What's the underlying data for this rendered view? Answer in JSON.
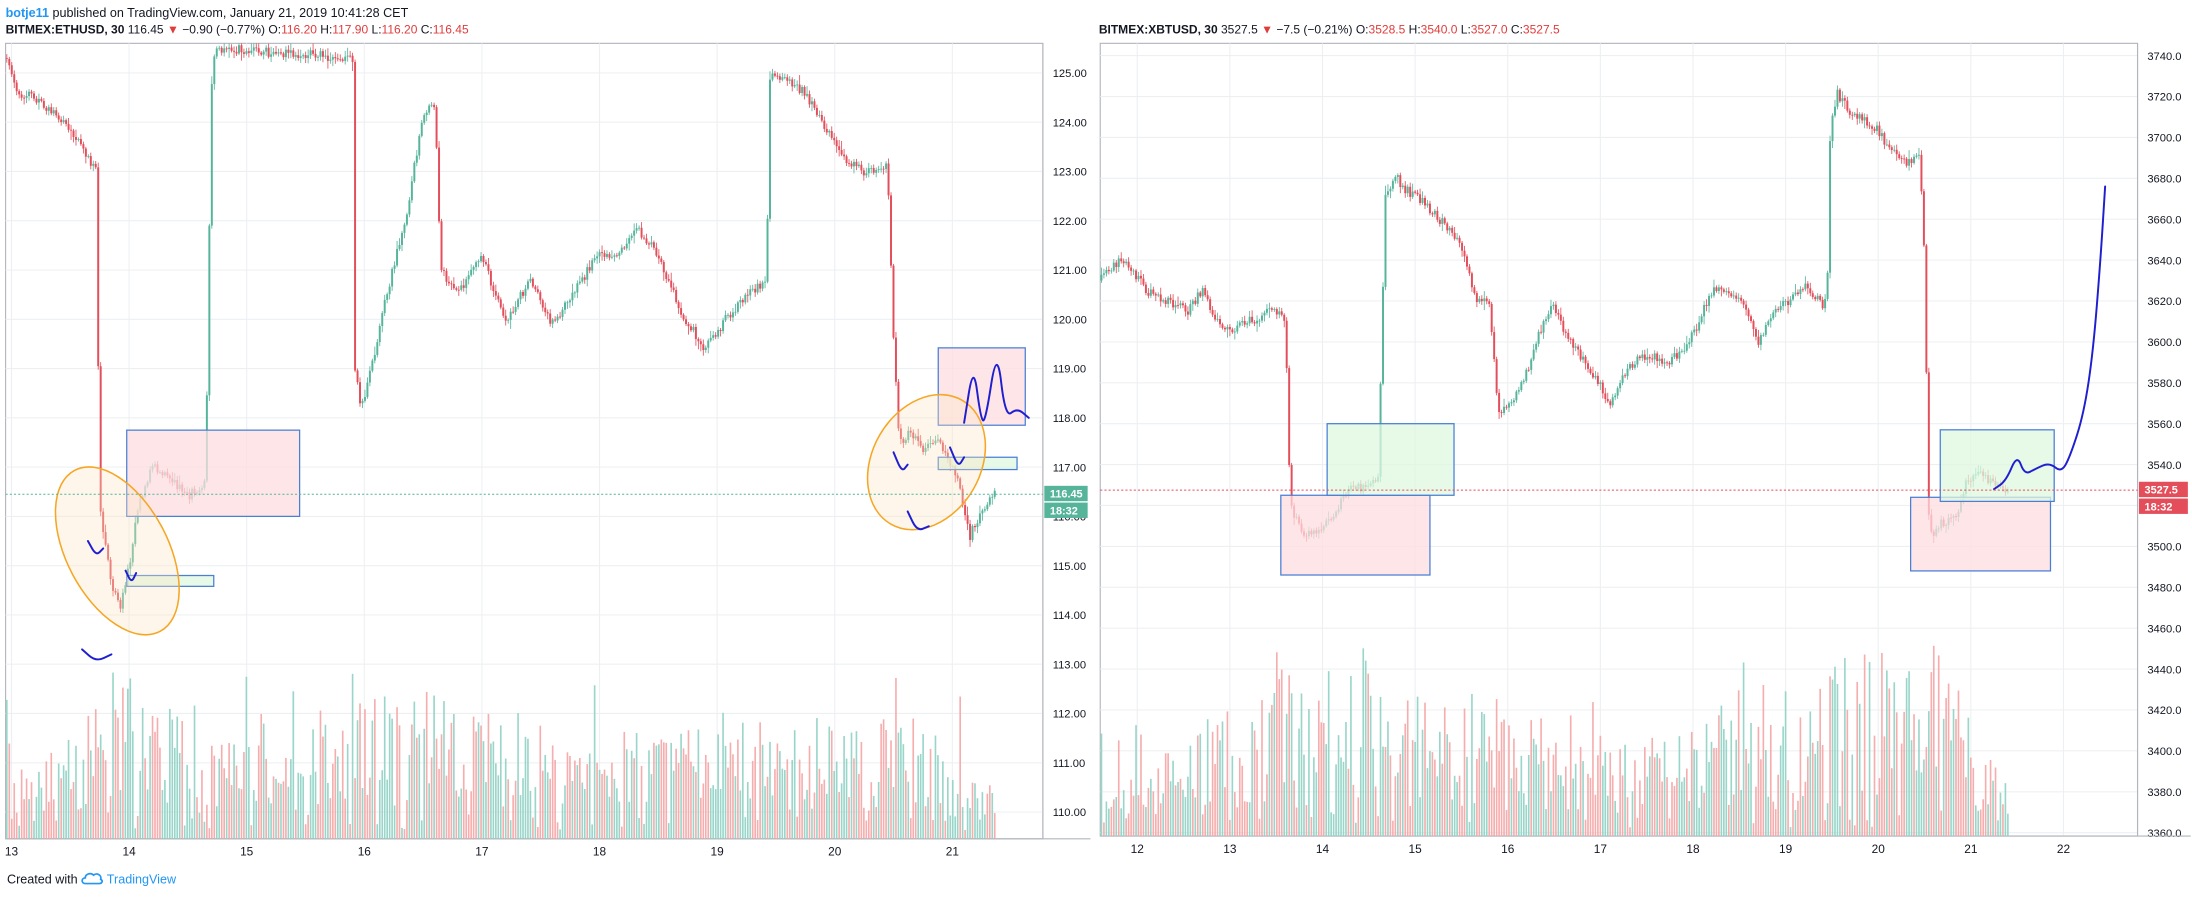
{
  "header": {
    "author": "botje11",
    "published": "published on TradingView.com, January 21, 2019 10:41:28 CET"
  },
  "footer": {
    "created_with": "Created with",
    "brand": "TradingView"
  },
  "colors": {
    "up": "#56b49b",
    "down": "#e34e5a",
    "vol_up": "#8ed0c3",
    "vol_down": "#f4a4a4",
    "grid": "#edf0f3",
    "axis": "#9aa0a6",
    "box_red_fill": "#fddde0",
    "box_green_fill": "#dff7df",
    "box_stroke": "#4a7fd6",
    "ellipse": "#f5a623",
    "marker": "#1f1fd0"
  },
  "panels": [
    {
      "id": "eth",
      "title": {
        "symbol": "BITMEX:ETHUSD, 30",
        "last": "116.45",
        "change": "−0.90 (−0.77%)",
        "o_label": "O:",
        "o": "116.20",
        "h_label": "H:",
        "h": "117.90",
        "l_label": "L:",
        "l": "116.20",
        "c_label": "C:",
        "c": "116.45"
      },
      "price_badge": {
        "value": "116.45",
        "countdown": "18:32",
        "color": "#56b49b"
      }
    },
    {
      "id": "xbt",
      "title": {
        "symbol": "BITMEX:XBTUSD, 30",
        "last": "3527.5",
        "change": "−7.5 (−0.21%)",
        "o_label": "O:",
        "o": "3528.5",
        "h_label": "H:",
        "h": "3540.0",
        "l_label": "L:",
        "l": "3527.0",
        "c_label": "C:",
        "c": "3527.5"
      },
      "price_badge": {
        "value": "3527.5",
        "countdown": "18:32",
        "color": "#e34e5a"
      }
    }
  ],
  "chart_data": [
    {
      "type": "candlestick",
      "symbol": "BITMEX:ETHUSD",
      "interval": "30",
      "ylim": [
        109.4,
        125.6
      ],
      "y_ticks": [
        "110.00",
        "111.00",
        "112.00",
        "113.00",
        "114.00",
        "115.00",
        "116.00",
        "117.00",
        "118.00",
        "119.00",
        "120.00",
        "121.00",
        "122.00",
        "123.00",
        "124.00",
        "125.00"
      ],
      "x_ticks": [
        "13",
        "14",
        "15",
        "16",
        "17",
        "18",
        "19",
        "20",
        "21"
      ],
      "x_range_days": [
        12.95,
        21.77
      ],
      "last_price": 116.45,
      "grid": true,
      "price_path": [
        [
          12.95,
          125.3
        ],
        [
          13.05,
          124.6
        ],
        [
          13.2,
          124.5
        ],
        [
          13.35,
          124.2
        ],
        [
          13.5,
          123.8
        ],
        [
          13.65,
          123.3
        ],
        [
          13.72,
          123.0
        ],
        [
          13.74,
          118.5
        ],
        [
          13.76,
          116.0
        ],
        [
          13.85,
          114.7
        ],
        [
          13.92,
          114.1
        ],
        [
          14.0,
          115.0
        ],
        [
          14.08,
          116.2
        ],
        [
          14.2,
          117.0
        ],
        [
          14.35,
          116.8
        ],
        [
          14.5,
          116.4
        ],
        [
          14.65,
          116.7
        ],
        [
          14.7,
          124.6
        ],
        [
          14.72,
          125.3
        ],
        [
          14.75,
          125.5
        ],
        [
          15.9,
          125.3
        ],
        [
          15.92,
          119.0
        ],
        [
          15.97,
          118.2
        ],
        [
          16.05,
          118.9
        ],
        [
          16.2,
          120.6
        ],
        [
          16.35,
          122.0
        ],
        [
          16.5,
          124.2
        ],
        [
          16.6,
          124.4
        ],
        [
          16.65,
          121.0
        ],
        [
          16.8,
          120.5
        ],
        [
          17.0,
          121.3
        ],
        [
          17.2,
          119.9
        ],
        [
          17.4,
          120.8
        ],
        [
          17.6,
          119.9
        ],
        [
          17.8,
          120.6
        ],
        [
          18.0,
          121.4
        ],
        [
          18.15,
          121.2
        ],
        [
          18.3,
          121.9
        ],
        [
          18.5,
          121.3
        ],
        [
          18.7,
          120.1
        ],
        [
          18.9,
          119.4
        ],
        [
          19.1,
          120.1
        ],
        [
          19.3,
          120.6
        ],
        [
          19.42,
          120.8
        ],
        [
          19.45,
          125.0
        ],
        [
          19.6,
          124.8
        ],
        [
          19.75,
          124.6
        ],
        [
          19.9,
          124.0
        ],
        [
          20.05,
          123.3
        ],
        [
          20.25,
          123.0
        ],
        [
          20.45,
          123.1
        ],
        [
          20.5,
          119.6
        ],
        [
          20.55,
          117.5
        ],
        [
          20.65,
          117.7
        ],
        [
          20.75,
          117.4
        ],
        [
          20.85,
          117.6
        ],
        [
          20.95,
          117.3
        ],
        [
          21.05,
          116.7
        ],
        [
          21.15,
          115.6
        ],
        [
          21.25,
          116.1
        ],
        [
          21.35,
          116.45
        ]
      ],
      "volume_path": [
        [
          12.95,
          0.1
        ],
        [
          13.74,
          0.95
        ],
        [
          14.7,
          0.55
        ],
        [
          15.92,
          0.9
        ],
        [
          17.5,
          0.5
        ],
        [
          19.45,
          0.6
        ],
        [
          20.5,
          0.7
        ],
        [
          21.2,
          0.3
        ]
      ],
      "annotations": {
        "boxes": [
          {
            "x1": 13.98,
            "x2": 15.45,
            "y1": 117.75,
            "y2": 116.0,
            "fill": "red"
          },
          {
            "x1": 13.98,
            "x2": 14.72,
            "y1": 114.8,
            "y2": 114.58,
            "fill": "green"
          },
          {
            "x1": 20.88,
            "x2": 21.62,
            "y1": 119.42,
            "y2": 117.85,
            "fill": "red"
          },
          {
            "x1": 20.88,
            "x2": 21.55,
            "y1": 117.2,
            "y2": 116.95,
            "fill": "green"
          }
        ],
        "ellipses": [
          {
            "cx": 13.9,
            "cy": 115.3,
            "rx": 0.43,
            "ry": 1.85,
            "rotate": -28
          },
          {
            "cx": 20.78,
            "cy": 117.1,
            "rx": 0.46,
            "ry": 1.45,
            "rotate": 30
          }
        ],
        "marker_paths": [
          [
            [
              13.65,
              115.5
            ],
            [
              13.72,
              115.2
            ],
            [
              13.78,
              115.35
            ]
          ],
          [
            [
              13.97,
              114.9
            ],
            [
              14.02,
              114.65
            ],
            [
              14.06,
              114.85
            ]
          ],
          [
            [
              13.6,
              113.3
            ],
            [
              13.72,
              113.05
            ],
            [
              13.85,
              113.2
            ]
          ],
          [
            [
              20.5,
              117.3
            ],
            [
              20.57,
              116.9
            ],
            [
              20.62,
              117.05
            ]
          ],
          [
            [
              20.62,
              116.1
            ],
            [
              20.7,
              115.7
            ],
            [
              20.8,
              115.8
            ]
          ],
          [
            [
              20.98,
              117.4
            ],
            [
              21.05,
              117.0
            ],
            [
              21.1,
              117.2
            ]
          ],
          [
            [
              21.1,
              117.9
            ],
            [
              21.18,
              119.1
            ],
            [
              21.24,
              118.0
            ],
            [
              21.28,
              117.9
            ],
            [
              21.38,
              119.45
            ],
            [
              21.45,
              118.0
            ],
            [
              21.55,
              118.2
            ],
            [
              21.65,
              118.0
            ]
          ]
        ]
      }
    },
    {
      "type": "candlestick",
      "symbol": "BITMEX:XBTUSD",
      "interval": "30",
      "ylim": [
        3357,
        3746
      ],
      "y_ticks": [
        "3360.0",
        "3380.0",
        "3400.0",
        "3420.0",
        "3440.0",
        "3460.0",
        "3480.0",
        "3500.0",
        "3520.0",
        "3540.0",
        "3560.0",
        "3580.0",
        "3600.0",
        "3620.0",
        "3640.0",
        "3660.0",
        "3680.0",
        "3700.0",
        "3720.0",
        "3740.0"
      ],
      "x_ticks": [
        "12",
        "13",
        "14",
        "15",
        "16",
        "17",
        "18",
        "19",
        "20",
        "21",
        "22"
      ],
      "x_range_days": [
        11.6,
        22.8
      ],
      "last_price": 3527.5,
      "grid": true,
      "price_path": [
        [
          11.6,
          3630
        ],
        [
          11.8,
          3640
        ],
        [
          11.95,
          3635
        ],
        [
          12.1,
          3625
        ],
        [
          12.3,
          3620
        ],
        [
          12.55,
          3615
        ],
        [
          12.7,
          3625
        ],
        [
          12.85,
          3610
        ],
        [
          13.0,
          3605
        ],
        [
          13.2,
          3610
        ],
        [
          13.45,
          3615
        ],
        [
          13.6,
          3612
        ],
        [
          13.65,
          3520
        ],
        [
          13.8,
          3505
        ],
        [
          13.95,
          3508
        ],
        [
          14.1,
          3515
        ],
        [
          14.3,
          3528
        ],
        [
          14.5,
          3530
        ],
        [
          14.6,
          3535
        ],
        [
          14.68,
          3670
        ],
        [
          14.8,
          3680
        ],
        [
          14.95,
          3672
        ],
        [
          15.1,
          3668
        ],
        [
          15.3,
          3658
        ],
        [
          15.5,
          3648
        ],
        [
          15.65,
          3622
        ],
        [
          15.8,
          3618
        ],
        [
          15.9,
          3565
        ],
        [
          16.05,
          3570
        ],
        [
          16.2,
          3585
        ],
        [
          16.4,
          3612
        ],
        [
          16.5,
          3618
        ],
        [
          16.6,
          3605
        ],
        [
          16.8,
          3592
        ],
        [
          17.0,
          3578
        ],
        [
          17.1,
          3570
        ],
        [
          17.3,
          3588
        ],
        [
          17.5,
          3594
        ],
        [
          17.7,
          3590
        ],
        [
          17.9,
          3595
        ],
        [
          18.05,
          3608
        ],
        [
          18.2,
          3625
        ],
        [
          18.4,
          3625
        ],
        [
          18.55,
          3620
        ],
        [
          18.7,
          3598
        ],
        [
          18.85,
          3615
        ],
        [
          19.05,
          3620
        ],
        [
          19.2,
          3628
        ],
        [
          19.4,
          3618
        ],
        [
          19.45,
          3625
        ],
        [
          19.48,
          3700
        ],
        [
          19.55,
          3722
        ],
        [
          19.7,
          3712
        ],
        [
          19.85,
          3708
        ],
        [
          20.0,
          3703
        ],
        [
          20.15,
          3693
        ],
        [
          20.3,
          3688
        ],
        [
          20.45,
          3692
        ],
        [
          20.5,
          3640
        ],
        [
          20.55,
          3505
        ],
        [
          20.7,
          3512
        ],
        [
          20.85,
          3514
        ],
        [
          20.95,
          3532
        ],
        [
          21.1,
          3535
        ],
        [
          21.25,
          3530
        ],
        [
          21.4,
          3527.5
        ]
      ],
      "volume_path": [
        [
          11.6,
          0.12
        ],
        [
          13.65,
          0.95
        ],
        [
          14.68,
          0.9
        ],
        [
          16.0,
          0.6
        ],
        [
          17.5,
          0.45
        ],
        [
          19.48,
          0.95
        ],
        [
          20.55,
          1.0
        ],
        [
          21.4,
          0.2
        ]
      ],
      "annotations": {
        "boxes": [
          {
            "x1": 13.55,
            "x2": 15.16,
            "y1": 3525,
            "y2": 3486,
            "fill": "red"
          },
          {
            "x1": 14.05,
            "x2": 15.42,
            "y1": 3560,
            "y2": 3525,
            "fill": "green"
          },
          {
            "x1": 20.35,
            "x2": 21.86,
            "y1": 3524,
            "y2": 3488,
            "fill": "red"
          },
          {
            "x1": 20.67,
            "x2": 21.9,
            "y1": 3557,
            "y2": 3522,
            "fill": "green"
          }
        ],
        "ellipses": [],
        "marker_paths": [
          [
            [
              21.25,
              3528
            ],
            [
              21.38,
              3532
            ],
            [
              21.5,
              3545
            ],
            [
              21.58,
              3535
            ],
            [
              21.7,
              3538
            ],
            [
              21.85,
              3541
            ],
            [
              21.98,
              3536
            ],
            [
              22.08,
              3545
            ],
            [
              22.22,
              3565
            ],
            [
              22.32,
              3595
            ],
            [
              22.4,
              3640
            ],
            [
              22.45,
              3676
            ]
          ]
        ]
      }
    }
  ]
}
